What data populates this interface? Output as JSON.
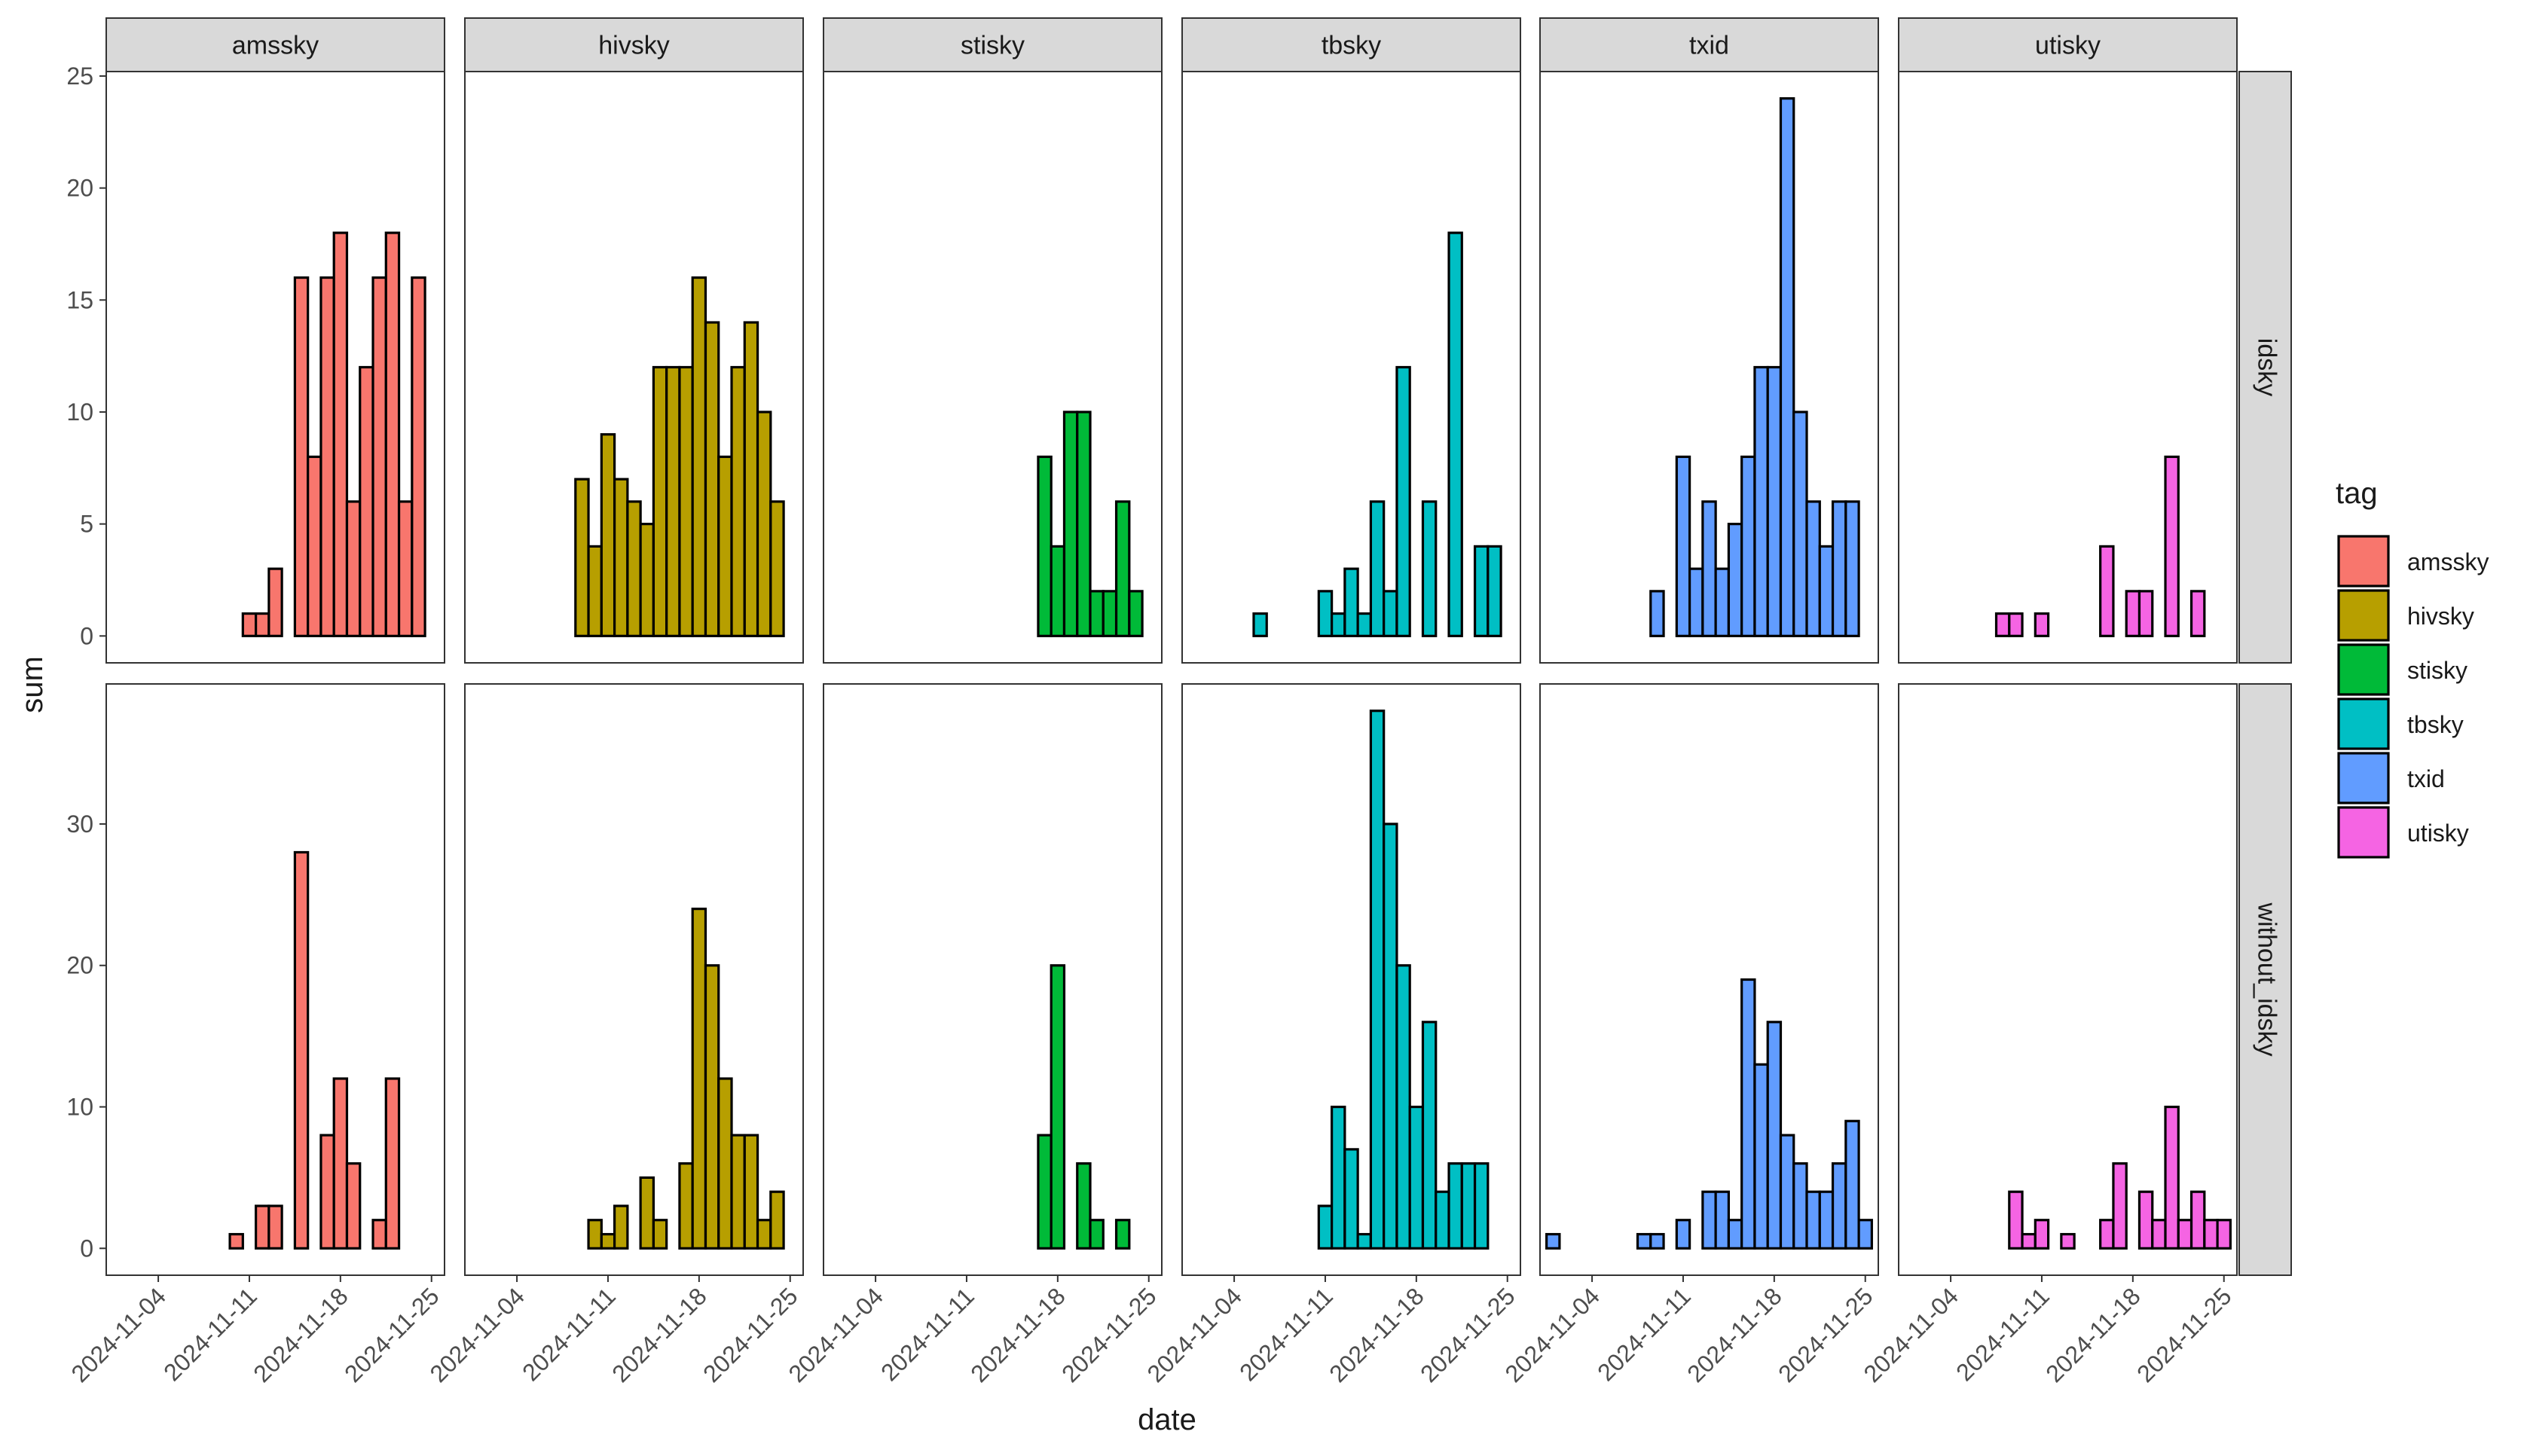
{
  "chart_data": {
    "type": "bar",
    "xlabel": "date",
    "ylabel": "sum",
    "x_axis_type": "date",
    "x_range": [
      "2024-10-31",
      "2024-11-26"
    ],
    "x_ticks": [
      "2024-11-04",
      "2024-11-11",
      "2024-11-18",
      "2024-11-25"
    ],
    "legend": {
      "title": "tag",
      "placement": "right",
      "entries": [
        "amssky",
        "hivsky",
        "stisky",
        "tbsky",
        "txid",
        "utisky"
      ]
    },
    "colors": {
      "amssky": "#F8766D",
      "hivsky": "#B79F00",
      "stisky": "#00BA38",
      "tbsky": "#00BFC4",
      "txid": "#619CFF",
      "utisky": "#F564E3"
    },
    "columns": [
      "amssky",
      "hivsky",
      "stisky",
      "tbsky",
      "txid",
      "utisky"
    ],
    "rows": [
      {
        "strip": "idsky",
        "ylim": [
          -1.2,
          25.2
        ],
        "y_ticks": [
          0,
          5,
          10,
          15,
          20,
          25
        ],
        "panels": {
          "amssky": [
            [
              "2024-11-06",
              0
            ],
            [
              "2024-11-08",
              0
            ],
            [
              "2024-11-09",
              0
            ],
            [
              "2024-11-10",
              0
            ],
            [
              "2024-11-11",
              1
            ],
            [
              "2024-11-12",
              1
            ],
            [
              "2024-11-13",
              3
            ],
            [
              "2024-11-14",
              0
            ],
            [
              "2024-11-15",
              16
            ],
            [
              "2024-11-16",
              8
            ],
            [
              "2024-11-17",
              16
            ],
            [
              "2024-11-18",
              18
            ],
            [
              "2024-11-19",
              6
            ],
            [
              "2024-11-20",
              12
            ],
            [
              "2024-11-21",
              16
            ],
            [
              "2024-11-22",
              18
            ],
            [
              "2024-11-23",
              6
            ],
            [
              "2024-11-24",
              16
            ]
          ],
          "hivsky": [
            [
              "2024-11-06",
              0
            ],
            [
              "2024-11-08",
              0
            ],
            [
              "2024-11-09",
              7
            ],
            [
              "2024-11-10",
              4
            ],
            [
              "2024-11-11",
              9
            ],
            [
              "2024-11-12",
              7
            ],
            [
              "2024-11-13",
              6
            ],
            [
              "2024-11-14",
              5
            ],
            [
              "2024-11-15",
              12
            ],
            [
              "2024-11-16",
              12
            ],
            [
              "2024-11-17",
              12
            ],
            [
              "2024-11-18",
              16
            ],
            [
              "2024-11-19",
              14
            ],
            [
              "2024-11-20",
              8
            ],
            [
              "2024-11-21",
              12
            ],
            [
              "2024-11-22",
              14
            ],
            [
              "2024-11-23",
              10
            ],
            [
              "2024-11-24",
              6
            ]
          ],
          "stisky": [
            [
              "2024-11-06",
              0
            ],
            [
              "2024-11-08",
              0
            ],
            [
              "2024-11-09",
              0
            ],
            [
              "2024-11-10",
              0
            ],
            [
              "2024-11-11",
              0
            ],
            [
              "2024-11-12",
              0
            ],
            [
              "2024-11-13",
              0
            ],
            [
              "2024-11-14",
              0
            ],
            [
              "2024-11-15",
              0
            ],
            [
              "2024-11-16",
              0
            ],
            [
              "2024-11-17",
              8
            ],
            [
              "2024-11-18",
              4
            ],
            [
              "2024-11-19",
              10
            ],
            [
              "2024-11-20",
              10
            ],
            [
              "2024-11-21",
              2
            ],
            [
              "2024-11-22",
              2
            ],
            [
              "2024-11-23",
              6
            ],
            [
              "2024-11-24",
              2
            ]
          ],
          "tbsky": [
            [
              "2024-11-06",
              1
            ],
            [
              "2024-11-08",
              0
            ],
            [
              "2024-11-09",
              0
            ],
            [
              "2024-11-10",
              0
            ],
            [
              "2024-11-11",
              2
            ],
            [
              "2024-11-12",
              1
            ],
            [
              "2024-11-13",
              3
            ],
            [
              "2024-11-14",
              1
            ],
            [
              "2024-11-15",
              6
            ],
            [
              "2024-11-16",
              2
            ],
            [
              "2024-11-17",
              12
            ],
            [
              "2024-11-18",
              0
            ],
            [
              "2024-11-19",
              6
            ],
            [
              "2024-11-20",
              0
            ],
            [
              "2024-11-21",
              18
            ],
            [
              "2024-11-22",
              0
            ],
            [
              "2024-11-23",
              4
            ],
            [
              "2024-11-24",
              4
            ]
          ],
          "txid": [
            [
              "2024-11-06",
              0
            ],
            [
              "2024-11-08",
              0
            ],
            [
              "2024-11-09",
              2
            ],
            [
              "2024-11-10",
              0
            ],
            [
              "2024-11-11",
              8
            ],
            [
              "2024-11-12",
              3
            ],
            [
              "2024-11-13",
              6
            ],
            [
              "2024-11-14",
              3
            ],
            [
              "2024-11-15",
              5
            ],
            [
              "2024-11-16",
              8
            ],
            [
              "2024-11-17",
              12
            ],
            [
              "2024-11-18",
              12
            ],
            [
              "2024-11-19",
              24
            ],
            [
              "2024-11-20",
              10
            ],
            [
              "2024-11-21",
              6
            ],
            [
              "2024-11-22",
              4
            ],
            [
              "2024-11-23",
              6
            ],
            [
              "2024-11-24",
              6
            ]
          ],
          "utisky": [
            [
              "2024-11-06",
              0
            ],
            [
              "2024-11-08",
              1
            ],
            [
              "2024-11-09",
              1
            ],
            [
              "2024-11-10",
              0
            ],
            [
              "2024-11-11",
              1
            ],
            [
              "2024-11-12",
              0
            ],
            [
              "2024-11-13",
              0
            ],
            [
              "2024-11-14",
              0
            ],
            [
              "2024-11-15",
              0
            ],
            [
              "2024-11-16",
              4
            ],
            [
              "2024-11-17",
              0
            ],
            [
              "2024-11-18",
              2
            ],
            [
              "2024-11-19",
              2
            ],
            [
              "2024-11-20",
              0
            ],
            [
              "2024-11-21",
              8
            ],
            [
              "2024-11-22",
              0
            ],
            [
              "2024-11-23",
              2
            ],
            [
              "2024-11-24",
              0
            ]
          ]
        }
      },
      {
        "strip": "without_idsky",
        "ylim": [
          -1.9,
          39.9
        ],
        "y_ticks": [
          0,
          10,
          20,
          30
        ],
        "panels": {
          "amssky": [
            [
              "2024-11-01",
              0
            ],
            [
              "2024-11-08",
              0
            ],
            [
              "2024-11-09",
              0
            ],
            [
              "2024-11-10",
              1
            ],
            [
              "2024-11-11",
              0
            ],
            [
              "2024-11-12",
              3
            ],
            [
              "2024-11-13",
              3
            ],
            [
              "2024-11-14",
              0
            ],
            [
              "2024-11-15",
              28
            ],
            [
              "2024-11-16",
              0
            ],
            [
              "2024-11-17",
              8
            ],
            [
              "2024-11-18",
              12
            ],
            [
              "2024-11-19",
              6
            ],
            [
              "2024-11-20",
              0
            ],
            [
              "2024-11-21",
              2
            ],
            [
              "2024-11-22",
              12
            ],
            [
              "2024-11-23",
              0
            ],
            [
              "2024-11-24",
              0
            ]
          ],
          "hivsky": [
            [
              "2024-11-01",
              0
            ],
            [
              "2024-11-08",
              0
            ],
            [
              "2024-11-09",
              0
            ],
            [
              "2024-11-10",
              2
            ],
            [
              "2024-11-11",
              1
            ],
            [
              "2024-11-12",
              3
            ],
            [
              "2024-11-13",
              0
            ],
            [
              "2024-11-14",
              5
            ],
            [
              "2024-11-15",
              2
            ],
            [
              "2024-11-16",
              0
            ],
            [
              "2024-11-17",
              6
            ],
            [
              "2024-11-18",
              24
            ],
            [
              "2024-11-19",
              20
            ],
            [
              "2024-11-20",
              12
            ],
            [
              "2024-11-21",
              8
            ],
            [
              "2024-11-22",
              8
            ],
            [
              "2024-11-23",
              2
            ],
            [
              "2024-11-24",
              4
            ]
          ],
          "stisky": [
            [
              "2024-11-01",
              0
            ],
            [
              "2024-11-08",
              0
            ],
            [
              "2024-11-09",
              0
            ],
            [
              "2024-11-10",
              0
            ],
            [
              "2024-11-11",
              0
            ],
            [
              "2024-11-12",
              0
            ],
            [
              "2024-11-13",
              0
            ],
            [
              "2024-11-14",
              0
            ],
            [
              "2024-11-15",
              0
            ],
            [
              "2024-11-16",
              0
            ],
            [
              "2024-11-17",
              8
            ],
            [
              "2024-11-18",
              20
            ],
            [
              "2024-11-19",
              0
            ],
            [
              "2024-11-20",
              6
            ],
            [
              "2024-11-21",
              2
            ],
            [
              "2024-11-22",
              0
            ],
            [
              "2024-11-23",
              2
            ],
            [
              "2024-11-24",
              0
            ]
          ],
          "tbsky": [
            [
              "2024-11-01",
              0
            ],
            [
              "2024-11-08",
              0
            ],
            [
              "2024-11-09",
              0
            ],
            [
              "2024-11-10",
              0
            ],
            [
              "2024-11-11",
              3
            ],
            [
              "2024-11-12",
              10
            ],
            [
              "2024-11-13",
              7
            ],
            [
              "2024-11-14",
              1
            ],
            [
              "2024-11-15",
              38
            ],
            [
              "2024-11-16",
              30
            ],
            [
              "2024-11-17",
              20
            ],
            [
              "2024-11-18",
              10
            ],
            [
              "2024-11-19",
              16
            ],
            [
              "2024-11-20",
              4
            ],
            [
              "2024-11-21",
              6
            ],
            [
              "2024-11-22",
              6
            ],
            [
              "2024-11-23",
              6
            ],
            [
              "2024-11-24",
              0
            ]
          ],
          "txid": [
            [
              "2024-11-01",
              1
            ],
            [
              "2024-11-08",
              1
            ],
            [
              "2024-11-09",
              1
            ],
            [
              "2024-11-10",
              0
            ],
            [
              "2024-11-11",
              2
            ],
            [
              "2024-11-12",
              0
            ],
            [
              "2024-11-13",
              4
            ],
            [
              "2024-11-14",
              4
            ],
            [
              "2024-11-15",
              2
            ],
            [
              "2024-11-16",
              19
            ],
            [
              "2024-11-17",
              13
            ],
            [
              "2024-11-18",
              16
            ],
            [
              "2024-11-19",
              8
            ],
            [
              "2024-11-20",
              6
            ],
            [
              "2024-11-21",
              4
            ],
            [
              "2024-11-22",
              4
            ],
            [
              "2024-11-23",
              6
            ],
            [
              "2024-11-24",
              9
            ],
            [
              "2024-11-25",
              2
            ]
          ],
          "utisky": [
            [
              "2024-11-01",
              0
            ],
            [
              "2024-11-08",
              0
            ],
            [
              "2024-11-09",
              4
            ],
            [
              "2024-11-10",
              1
            ],
            [
              "2024-11-11",
              2
            ],
            [
              "2024-11-12",
              0
            ],
            [
              "2024-11-13",
              1
            ],
            [
              "2024-11-14",
              0
            ],
            [
              "2024-11-15",
              0
            ],
            [
              "2024-11-16",
              2
            ],
            [
              "2024-11-17",
              6
            ],
            [
              "2024-11-18",
              0
            ],
            [
              "2024-11-19",
              4
            ],
            [
              "2024-11-20",
              2
            ],
            [
              "2024-11-21",
              10
            ],
            [
              "2024-11-22",
              2
            ],
            [
              "2024-11-23",
              4
            ],
            [
              "2024-11-24",
              2
            ],
            [
              "2024-11-25",
              2
            ]
          ]
        }
      }
    ]
  }
}
